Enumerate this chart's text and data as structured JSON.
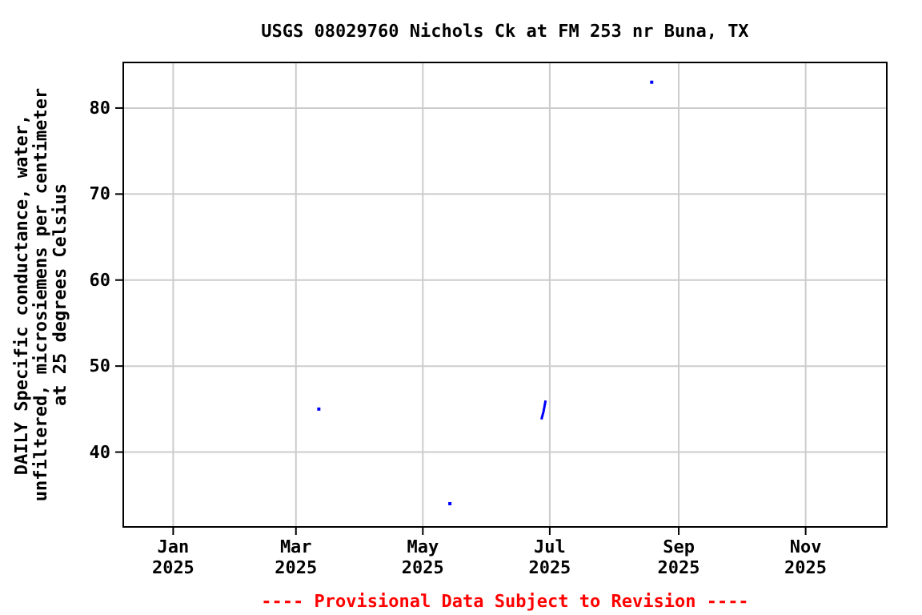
{
  "chart_data": {
    "type": "line",
    "title": "USGS 08029760 Nichols Ck at FM 253 nr Buna, TX",
    "ylabel": "DAILY Specific conductance, water,\nunfiltered, microsiemens per centimeter\nat 25 degrees Celsius",
    "annotations": [
      "---- Provisional Data Subject to Revision ----"
    ],
    "x": [
      "2025-03-12",
      "2025-03-13",
      "2025-05-14",
      "2025-05-15",
      "2025-06-27",
      "2025-06-28",
      "2025-06-29",
      "2025-06-30",
      "2025-08-19"
    ],
    "series": [
      {
        "color": "#0000ff",
        "values": [
          45,
          null,
          34,
          null,
          43.8,
          44.7,
          46,
          null,
          83
        ]
      }
    ],
    "xlim": [
      "2024-12-08",
      "2025-12-10"
    ],
    "xticks": [
      {
        "value": "2025-01-01",
        "label": "Jan\n2025"
      },
      {
        "value": "2025-03-01",
        "label": "Mar\n2025"
      },
      {
        "value": "2025-05-01",
        "label": "May\n2025"
      },
      {
        "value": "2025-07-01",
        "label": "Jul\n2025"
      },
      {
        "value": "2025-09-01",
        "label": "Sep\n2025"
      },
      {
        "value": "2025-11-01",
        "label": "Nov\n2025"
      }
    ],
    "ylim": [
      31.3,
      85.3
    ],
    "yticks": [
      40,
      50,
      60,
      70,
      80
    ],
    "grid": true,
    "line_style": "solid"
  }
}
